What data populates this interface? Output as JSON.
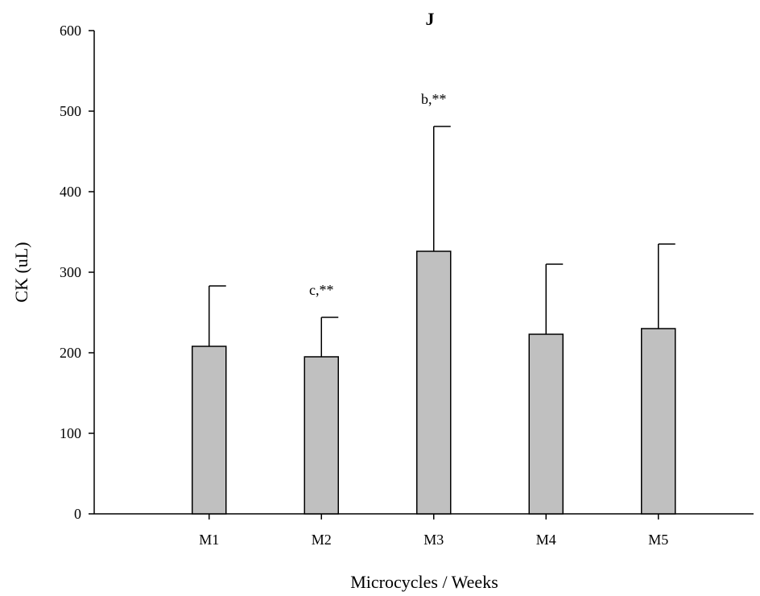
{
  "chart_data": {
    "type": "bar",
    "title": "J",
    "xlabel": "Microcycles / Weeks",
    "ylabel": "CK (uL)",
    "categories": [
      "M1",
      "M2",
      "M3",
      "M4",
      "M5"
    ],
    "values": [
      208,
      195,
      326,
      223,
      230
    ],
    "error_upper": [
      283,
      244,
      481,
      310,
      335
    ],
    "annotations": [
      "",
      "c,**",
      "b,**",
      "",
      ""
    ],
    "ylim": [
      0,
      600
    ],
    "yticks": [
      0,
      100,
      200,
      300,
      400,
      500,
      600
    ],
    "grid": false,
    "legend": "none",
    "colors": {
      "bar_fill": "#c0c0c0",
      "bar_stroke": "#000000",
      "axis": "#000000"
    }
  }
}
